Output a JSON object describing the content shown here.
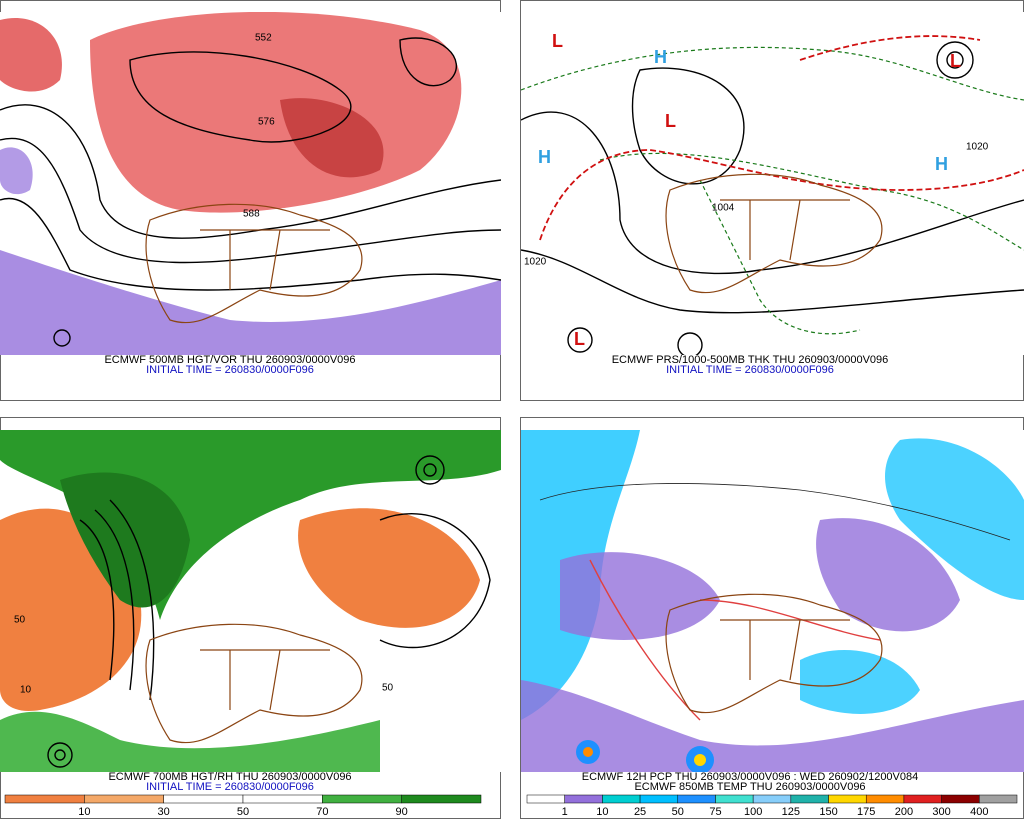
{
  "panels": [
    {
      "captions": [
        "ECMWF 500MB HGT/VOR THU 260903/0000V096",
        "INITIAL TIME = 260830/0000F096"
      ],
      "contour_labels": [
        "576",
        "588",
        "552"
      ]
    },
    {
      "captions": [
        "ECMWF PRS/1000-500MB THK THU 260903/0000V096",
        "INITIAL TIME = 260830/0000F096"
      ],
      "markers": [
        "H",
        "L"
      ],
      "contour_labels": [
        "1020",
        "1004"
      ]
    },
    {
      "captions": [
        "ECMWF 700MB HGT/RH THU 260903/0000V096",
        "INITIAL TIME = 260830/0000F096"
      ],
      "contour_labels": [
        "50",
        "10"
      ],
      "color_bar": {
        "labels": [
          "10",
          "30",
          "50",
          "70",
          "90"
        ],
        "colors": [
          "#f08040",
          "#f4a868",
          "#ffffff",
          "#ffffff",
          "#40b040",
          "#1e8a1e"
        ]
      }
    },
    {
      "captions": [
        "ECMWF 12H PCP THU 260903/0000V096 : WED 260902/1200V084",
        "ECMWF 850MB TEMP THU 260903/0000V096"
      ],
      "color_bar": {
        "labels": [
          "1",
          "10",
          "25",
          "50",
          "75",
          "100",
          "125",
          "150",
          "175",
          "200",
          "300",
          "400"
        ],
        "colors": [
          "#ffffff",
          "#9370db",
          "#00ced1",
          "#00bfff",
          "#1e90ff",
          "#40e0d0",
          "#87cefa",
          "#20b2aa",
          "#ffd700",
          "#ff8c00",
          "#e02020",
          "#8b0000",
          "#a0a0a0"
        ]
      }
    }
  ]
}
